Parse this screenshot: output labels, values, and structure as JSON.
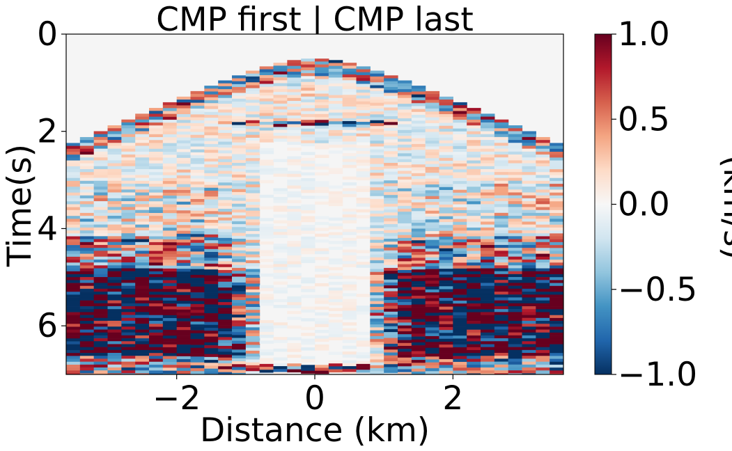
{
  "chart_data": {
    "type": "heatmap",
    "title": "CMP first | CMP last",
    "xlabel": "Distance (km)",
    "ylabel": "Time(s)",
    "xlim": [
      -3.6,
      3.6
    ],
    "ylim": [
      7.0,
      0.0
    ],
    "x_ticks": [
      {
        "value": -2,
        "label": "−2"
      },
      {
        "value": 0,
        "label": "0"
      },
      {
        "value": 2,
        "label": "2"
      }
    ],
    "y_ticks": [
      {
        "value": 0,
        "label": "0"
      },
      {
        "value": 2,
        "label": "2"
      },
      {
        "value": 4,
        "label": "4"
      },
      {
        "value": 6,
        "label": "6"
      }
    ],
    "colorbar": {
      "label": "(km/s)",
      "range": [
        -1.0,
        1.0
      ],
      "colormap": "RdBu_r",
      "ticks": [
        {
          "value": 1.0,
          "label": "1.0"
        },
        {
          "value": 0.5,
          "label": "0.5"
        },
        {
          "value": 0.0,
          "label": "0.0"
        },
        {
          "value": -0.5,
          "label": "−0.5"
        },
        {
          "value": -1.0,
          "label": "−1.0"
        }
      ]
    },
    "grid": false,
    "description_of_pattern": {
      "n_traces": 36,
      "first_arrival_apex_time_s": 0.5,
      "first_arrival_edge_time_s": 2.3,
      "strong_energy_time_range_s": [
        4.8,
        6.6
      ],
      "symmetric_about_x": 0
    }
  }
}
